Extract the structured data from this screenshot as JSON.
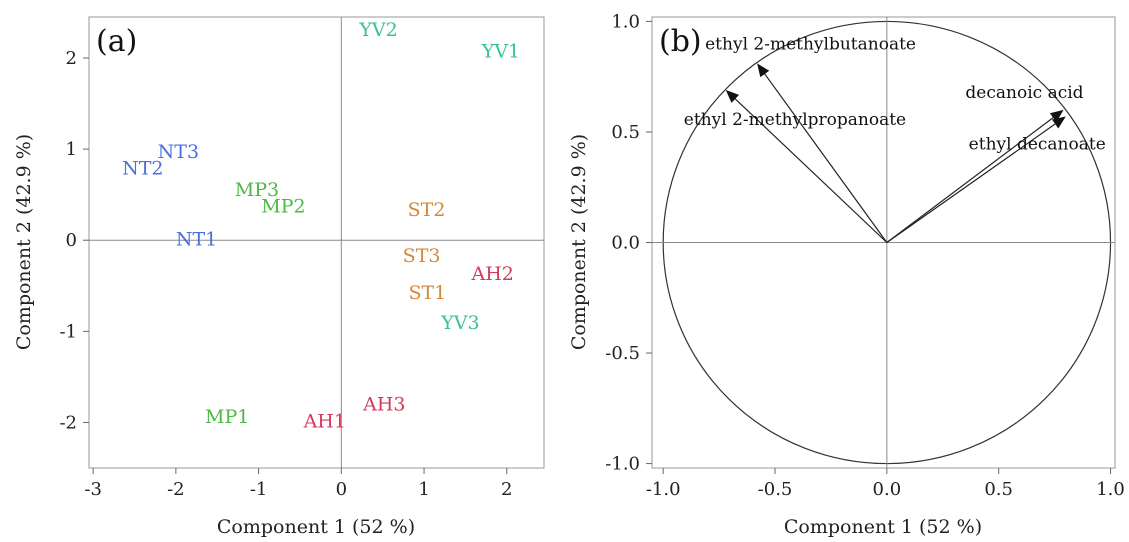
{
  "chart_data": [
    {
      "type": "scatter",
      "panel_label": "(a)",
      "xlabel": "Component 1  (52 %)",
      "ylabel": "Component 2  (42.9 %)",
      "xlim": [
        -3.05,
        2.45
      ],
      "ylim": [
        -2.5,
        2.45
      ],
      "xticks": [
        -3,
        -2,
        -1,
        0,
        1,
        2
      ],
      "yticks": [
        -2,
        -1,
        0,
        1,
        2
      ],
      "reference_lines": {
        "x": 0,
        "y": 0
      },
      "grid": false,
      "group_colors": {
        "NT": "#4a6fe3",
        "MP": "#4cba45",
        "ST": "#d6873a",
        "AH": "#d63a5a",
        "YV": "#3bbf9a"
      },
      "points": [
        {
          "label": "YV2",
          "group": "YV",
          "x": 0.45,
          "y": 2.32
        },
        {
          "label": "YV1",
          "group": "YV",
          "x": 1.93,
          "y": 2.08
        },
        {
          "label": "NT3",
          "group": "NT",
          "x": -1.97,
          "y": 0.98
        },
        {
          "label": "NT2",
          "group": "NT",
          "x": -2.4,
          "y": 0.8
        },
        {
          "label": "MP3",
          "group": "MP",
          "x": -1.02,
          "y": 0.56
        },
        {
          "label": "MP2",
          "group": "MP",
          "x": -0.7,
          "y": 0.38
        },
        {
          "label": "ST2",
          "group": "ST",
          "x": 1.03,
          "y": 0.34
        },
        {
          "label": "NT1",
          "group": "NT",
          "x": -1.75,
          "y": 0.02
        },
        {
          "label": "ST3",
          "group": "ST",
          "x": 0.97,
          "y": -0.16
        },
        {
          "label": "AH2",
          "group": "AH",
          "x": 1.83,
          "y": -0.36
        },
        {
          "label": "ST1",
          "group": "ST",
          "x": 1.04,
          "y": -0.57
        },
        {
          "label": "YV3",
          "group": "YV",
          "x": 1.44,
          "y": -0.9
        },
        {
          "label": "AH3",
          "group": "AH",
          "x": 0.52,
          "y": -1.79
        },
        {
          "label": "MP1",
          "group": "MP",
          "x": -1.38,
          "y": -1.93
        },
        {
          "label": "AH1",
          "group": "AH",
          "x": -0.2,
          "y": -1.98
        }
      ]
    },
    {
      "type": "scatter",
      "subtype": "correlation-circle",
      "panel_label": "(b)",
      "xlabel": "Component 1  (52 %)",
      "ylabel": "Component 2  (42.9 %)",
      "xlim": [
        -1.05,
        1.02
      ],
      "ylim": [
        -1.02,
        1.02
      ],
      "xticks": [
        -1.0,
        -0.5,
        0.0,
        0.5,
        1.0
      ],
      "yticks": [
        -1.0,
        -0.5,
        0.0,
        0.5,
        1.0
      ],
      "unit_circle": true,
      "reference_lines": {
        "x": 0,
        "y": 0
      },
      "grid": false,
      "loadings": [
        {
          "label": "ethyl 2-methylbutanoate",
          "x": -0.58,
          "y": 0.81
        },
        {
          "label": "ethyl 2-methylpropanoate",
          "x": -0.72,
          "y": 0.69
        },
        {
          "label": "decanoic acid",
          "x": 0.79,
          "y": 0.6
        },
        {
          "label": "ethyl decanoate",
          "x": 0.8,
          "y": 0.57
        }
      ]
    }
  ]
}
